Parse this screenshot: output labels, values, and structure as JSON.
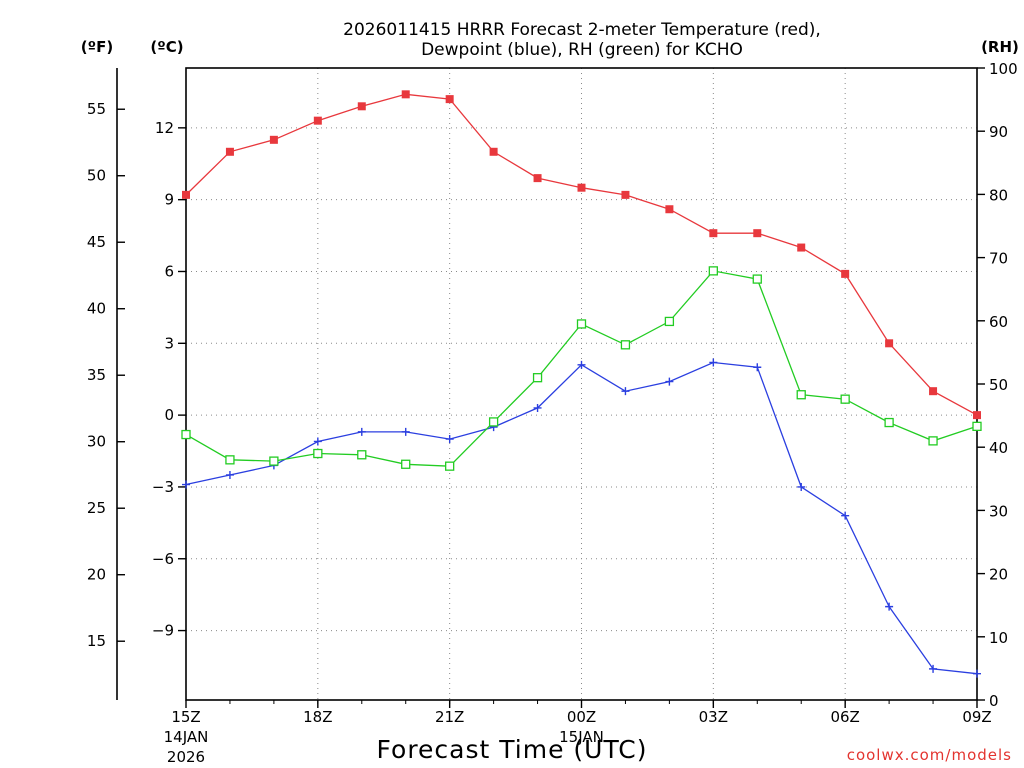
{
  "chart_data": {
    "type": "line",
    "title": "2026011415 HRRR Forecast 2-meter Temperature (red),",
    "subtitle": "Dewpoint (blue), RH (green) for KCHO",
    "xlabel": "Forecast Time (UTC)",
    "credit": "coolwx.com/models",
    "left_unit_f": "(ºF)",
    "left_unit_c": "(ºC)",
    "right_unit": "(RH)",
    "x_hours": [
      0,
      1,
      2,
      3,
      4,
      5,
      6,
      7,
      8,
      9,
      10,
      11,
      12,
      13,
      14,
      15,
      16,
      17,
      18
    ],
    "x_ticks": [
      {
        "hour": 0,
        "label": "15Z",
        "sub1": "14JAN",
        "sub2": "2026"
      },
      {
        "hour": 3,
        "label": "18Z",
        "sub1": "",
        "sub2": ""
      },
      {
        "hour": 6,
        "label": "21Z",
        "sub1": "",
        "sub2": ""
      },
      {
        "hour": 9,
        "label": "00Z",
        "sub1": "15JAN",
        "sub2": ""
      },
      {
        "hour": 12,
        "label": "03Z",
        "sub1": "",
        "sub2": ""
      },
      {
        "hour": 15,
        "label": "06Z",
        "sub1": "",
        "sub2": ""
      },
      {
        "hour": 18,
        "label": "09Z",
        "sub1": "",
        "sub2": ""
      }
    ],
    "celsius_axis": {
      "min": -11.9,
      "max": 14.5,
      "ticks": [
        12,
        9,
        6,
        3,
        0,
        -3,
        -6,
        -9
      ],
      "tick_labels": [
        "12",
        "9",
        "6",
        "3",
        "0",
        "−3",
        "−6",
        "−9"
      ]
    },
    "fahrenheit_axis": {
      "ticks": [
        55,
        50,
        45,
        40,
        35,
        30,
        25,
        20,
        15
      ],
      "tick_labels": [
        "55",
        "50",
        "45",
        "40",
        "35",
        "30",
        "25",
        "20",
        "15"
      ]
    },
    "rh_axis": {
      "min": 0,
      "max": 100,
      "ticks": [
        0,
        10,
        20,
        30,
        40,
        50,
        60,
        70,
        80,
        90,
        100
      ],
      "tick_labels": [
        "0",
        "10",
        "20",
        "30",
        "40",
        "50",
        "60",
        "70",
        "80",
        "90",
        "100"
      ]
    },
    "series": [
      {
        "name": "Temperature",
        "unit": "C",
        "color": "#e8383d",
        "marker": "filled-square",
        "values": [
          9.2,
          11.0,
          11.5,
          12.3,
          12.9,
          13.4,
          13.2,
          11.0,
          9.9,
          9.5,
          9.2,
          8.6,
          7.6,
          7.6,
          7.0,
          5.9,
          3.0,
          1.0,
          0.0
        ]
      },
      {
        "name": "Dewpoint",
        "unit": "C",
        "color": "#2b3fe0",
        "marker": "plus",
        "values": [
          -2.9,
          -2.5,
          -2.1,
          -1.1,
          -0.7,
          -0.7,
          -1.0,
          -0.5,
          0.3,
          2.1,
          1.0,
          1.4,
          2.2,
          2.0,
          -3.0,
          -4.2,
          -8.0,
          -10.6,
          -10.8
        ]
      },
      {
        "name": "RH",
        "unit": "%",
        "color": "#22cc22",
        "marker": "open-square",
        "values": [
          42.0,
          38.0,
          37.8,
          39.0,
          38.8,
          37.3,
          37.0,
          44.0,
          51.0,
          59.5,
          56.2,
          59.9,
          67.9,
          66.6,
          48.3,
          47.6,
          43.9,
          41.0,
          43.3
        ]
      }
    ]
  }
}
